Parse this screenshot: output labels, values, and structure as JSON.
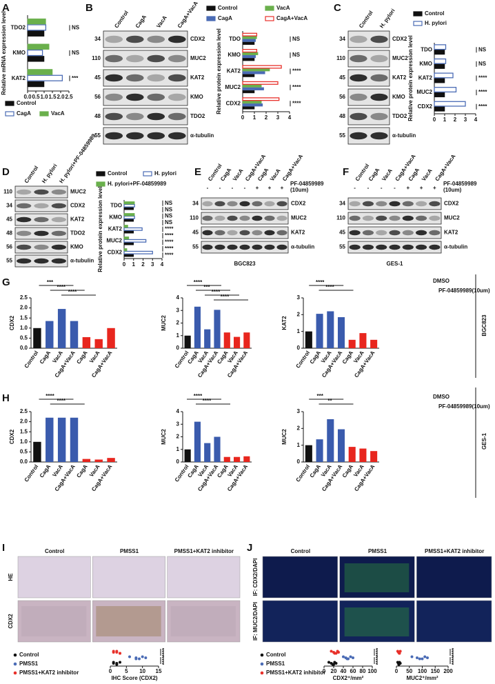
{
  "chart_data": [
    {
      "type": "hbar",
      "panel": "A",
      "ylabel": "Relative mRNA expression level",
      "categories": [
        "TDO2",
        "KMO",
        "KAT2"
      ],
      "series": [
        {
          "name": "Control",
          "color": "#111111",
          "values": [
            1,
            1,
            1
          ]
        },
        {
          "name": "CagA",
          "color": "#4a6bb5",
          "outline": true,
          "values": [
            1.1,
            0.9,
            2.1
          ]
        },
        {
          "name": "VacA",
          "color": "#6ab04c",
          "values": [
            1.1,
            1.3,
            1.5
          ]
        }
      ],
      "xlim": [
        0,
        2.5
      ],
      "xticks": [
        {
          "value": 0,
          "label": "0.0"
        },
        {
          "value": 0.5,
          "label": "0.5"
        },
        {
          "value": 1,
          "label": "1.0"
        },
        {
          "value": 1.5,
          "label": "1.5"
        },
        {
          "value": 2,
          "label": "2.0"
        },
        {
          "value": 2.5,
          "label": "2.5"
        }
      ],
      "annotations": [
        "NS",
        "NS",
        "***"
      ]
    },
    {
      "type": "hbar",
      "ylabel": "Relative protein expression level",
      "categories": [
        "TDO",
        "KMO",
        "KAT2",
        "MUC2",
        "CDX2"
      ],
      "series": [
        {
          "name": "Control",
          "color": "#111111",
          "values": [
            1,
            1,
            1,
            1,
            1
          ]
        },
        {
          "name": "CagA",
          "color": "#4a6bb5",
          "values": [
            1.1,
            1.1,
            1.9,
            1.8,
            1.7
          ]
        },
        {
          "name": "VacA",
          "color": "#6ab04c",
          "values": [
            1.2,
            1.3,
            2.3,
            1.6,
            1.6
          ]
        },
        {
          "name": "CagA+VacA",
          "color": "#e8302a",
          "outline": true,
          "values": [
            1.2,
            1.2,
            3.3,
            3.0,
            3.1
          ]
        }
      ],
      "xlim": [
        0,
        4
      ],
      "xticks": [
        0,
        1,
        2,
        3,
        4
      ],
      "annotations": [
        "NS",
        "NS",
        "****",
        "****",
        "****"
      ]
    },
    {
      "type": "hbar",
      "ylabel": "Relative protein expression level",
      "categories": [
        "TDO",
        "KMO",
        "KAT2",
        "MUC2",
        "CDX2"
      ],
      "series": [
        {
          "name": "Control",
          "color": "#111111",
          "values": [
            1,
            1,
            1,
            1,
            1
          ]
        },
        {
          "name": "H. pylori",
          "color": "#4a6bb5",
          "outline": true,
          "values": [
            1.1,
            1.1,
            1.8,
            2.1,
            3.0
          ]
        }
      ],
      "xlim": [
        0,
        4
      ],
      "xticks": [
        0,
        1,
        2,
        3,
        4
      ],
      "annotations": [
        "NS",
        "NS",
        "****",
        "****",
        "****"
      ]
    },
    {
      "type": "hbar",
      "ylabel": "Relative protein expression level",
      "categories": [
        "TDO",
        "KMO",
        "KAT2",
        "MUC2",
        "CDX2"
      ],
      "series": [
        {
          "name": "Control",
          "color": "#111111",
          "values": [
            1,
            1,
            1,
            1,
            1
          ]
        },
        {
          "name": "H. pylori",
          "color": "#4a6bb5",
          "outline": true,
          "values": [
            1.1,
            1.1,
            1.9,
            2.3,
            3.0
          ]
        },
        {
          "name": "H. pylori+PF-04859989",
          "color": "#6ab04c",
          "values": [
            1.1,
            1.1,
            0.4,
            0.5,
            0.3
          ]
        }
      ],
      "xlim": [
        0,
        4
      ],
      "xticks": [
        0,
        1,
        2,
        3,
        4
      ],
      "annotations": [
        "NS",
        "NS",
        "NS",
        "NS",
        "****",
        "****",
        "****",
        "****",
        "****"
      ]
    },
    {
      "type": "bar",
      "panel": "G",
      "ylabel": "CDX2",
      "categories": [
        "Control",
        "CagA",
        "VacA",
        "CagA+VacA",
        "CagA",
        "VacA",
        "CagA+VacA"
      ],
      "values": [
        1,
        1.35,
        1.95,
        1.35,
        0.55,
        0.45,
        1.0
      ],
      "colors": [
        "#111111",
        "#3a5bad",
        "#3a5bad",
        "#3a5bad",
        "#e8261e",
        "#e8261e",
        "#e8261e"
      ],
      "ylim": [
        0,
        2.5
      ],
      "yticks": [
        {
          "value": 0,
          "label": "0.0"
        },
        {
          "value": 0.5,
          "label": "0.5"
        },
        {
          "value": 1,
          "label": "1.0"
        },
        {
          "value": 1.5,
          "label": "1.5"
        },
        {
          "value": 2,
          "label": "2.0"
        },
        {
          "value": 2.5,
          "label": "2.5"
        }
      ],
      "annotations": [
        "***",
        "****",
        "****"
      ],
      "legend": [
        {
          "name": "DMSO",
          "color": "#2e4fa3"
        },
        {
          "name": "PF-04859989(10um)",
          "color": "#e8261e"
        }
      ],
      "side_label": "BGC823"
    },
    {
      "type": "bar",
      "ylabel": "MUC2",
      "categories": [
        "Control",
        "CagA",
        "VacA",
        "CagA+VacA",
        "CagA",
        "VacA",
        "CagA+VacA"
      ],
      "values": [
        1,
        3.3,
        1.5,
        3.05,
        1.25,
        0.9,
        1.25
      ],
      "colors": [
        "#111111",
        "#3a5bad",
        "#3a5bad",
        "#3a5bad",
        "#e8261e",
        "#e8261e",
        "#e8261e"
      ],
      "ylim": [
        0,
        4
      ],
      "yticks": [
        0,
        1,
        2,
        3,
        4
      ],
      "annotations": [
        "****",
        "***",
        "****",
        "****"
      ]
    },
    {
      "type": "bar",
      "ylabel": "KAT2",
      "categories": [
        "Control",
        "CagA",
        "VacA",
        "CagA+VacA",
        "CagA",
        "VacA",
        "CagA+VacA"
      ],
      "values": [
        1,
        2.05,
        2.2,
        1.85,
        0.5,
        0.9,
        0.5
      ],
      "colors": [
        "#111111",
        "#3a5bad",
        "#3a5bad",
        "#3a5bad",
        "#e8261e",
        "#e8261e",
        "#e8261e"
      ],
      "ylim": [
        0,
        3
      ],
      "yticks": [
        0,
        1,
        2,
        3
      ],
      "annotations": [
        "****",
        "****"
      ]
    },
    {
      "type": "bar",
      "panel": "H",
      "ylabel": "CDX2",
      "categories": [
        "Control",
        "CagA",
        "VacA",
        "CagA+VacA",
        "CagA",
        "VacA",
        "CagA+VacA"
      ],
      "values": [
        1,
        2.2,
        2.2,
        2.2,
        0.15,
        0.12,
        0.2
      ],
      "colors": [
        "#111111",
        "#3a5bad",
        "#3a5bad",
        "#3a5bad",
        "#e8261e",
        "#e8261e",
        "#e8261e"
      ],
      "ylim": [
        0,
        2.5
      ],
      "yticks": [
        {
          "value": 0,
          "label": "0.0"
        },
        {
          "value": 0.5,
          "label": "0.5"
        },
        {
          "value": 1,
          "label": "1.0"
        },
        {
          "value": 1.5,
          "label": "1.5"
        },
        {
          "value": 2,
          "label": "2.0"
        },
        {
          "value": 2.5,
          "label": "2.5"
        }
      ],
      "annotations": [
        "****",
        "****"
      ],
      "legend": [
        {
          "name": "DMSO",
          "color": "#2e4fa3"
        },
        {
          "name": "PF-04859989(10um)",
          "color": "#e8261e"
        }
      ],
      "side_label": "GES-1"
    },
    {
      "type": "bar",
      "ylabel": "MUC2",
      "categories": [
        "Control",
        "CagA",
        "VacA",
        "CagA+VacA",
        "CagA",
        "VacA",
        "CagA+VacA"
      ],
      "values": [
        1,
        3.2,
        1.5,
        2.0,
        0.4,
        0.4,
        0.45
      ],
      "colors": [
        "#111111",
        "#3a5bad",
        "#3a5bad",
        "#3a5bad",
        "#e8261e",
        "#e8261e",
        "#e8261e"
      ],
      "ylim": [
        0,
        4
      ],
      "yticks": [
        0,
        1,
        2,
        3,
        4
      ],
      "annotations": [
        "****",
        "****"
      ]
    },
    {
      "type": "bar",
      "ylabel": "MUC2",
      "categories": [
        "Control",
        "CagA",
        "VacA",
        "CagA+VacA",
        "CagA",
        "VacA",
        "CagA+VacA"
      ],
      "values": [
        1,
        1.35,
        2.55,
        1.95,
        0.9,
        0.8,
        0.65
      ],
      "colors": [
        "#111111",
        "#3a5bad",
        "#3a5bad",
        "#3a5bad",
        "#e8261e",
        "#e8261e",
        "#e8261e"
      ],
      "ylim": [
        0,
        3
      ],
      "yticks": [
        0,
        1,
        2,
        3
      ],
      "annotations": [
        "***",
        "**"
      ]
    },
    {
      "type": "strip",
      "xlabel": "IHC Score (CDX2)",
      "series": [
        {
          "name": "Control",
          "color": "#111111",
          "values": [
            1,
            2,
            2,
            3,
            1,
            2
          ]
        },
        {
          "name": "PMSS1",
          "color": "#4a6bb5",
          "values": [
            6,
            8,
            9,
            10,
            11,
            8
          ]
        },
        {
          "name": "PMSS1+KAT2 inhibitor",
          "color": "#e8302a",
          "values": [
            1,
            2,
            3,
            2,
            1,
            3
          ]
        }
      ],
      "xlim": [
        0,
        15
      ],
      "xticks": [
        0,
        5,
        10,
        15
      ],
      "annotations": [
        "****",
        "****"
      ]
    },
    {
      "type": "strip",
      "xlabel": "CDX2⁺/mm²",
      "series": [
        {
          "name": "Control",
          "color": "#111111",
          "values": [
            10,
            15,
            20,
            22,
            25,
            18
          ]
        },
        {
          "name": "PMSS1",
          "color": "#4a6bb5",
          "values": [
            40,
            45,
            50,
            55,
            60,
            48
          ]
        },
        {
          "name": "PMSS1+KAT2 inhibitor",
          "color": "#e8302a",
          "values": [
            15,
            20,
            25,
            28,
            30,
            22
          ]
        }
      ],
      "xlim": [
        0,
        100
      ],
      "xticks": [
        0,
        20,
        40,
        60,
        80,
        100
      ],
      "annotations": [
        "****",
        "****"
      ]
    },
    {
      "type": "strip",
      "xlabel": "MUC2⁺/mm²",
      "series": [
        {
          "color": "#111111",
          "values": [
            5,
            8,
            10,
            12,
            15,
            9
          ]
        },
        {
          "color": "#4a6bb5",
          "values": [
            60,
            80,
            100,
            110,
            120,
            90
          ]
        },
        {
          "color": "#e8302a",
          "values": [
            5,
            10,
            12,
            15,
            8,
            11
          ]
        }
      ],
      "xlim": [
        0,
        200
      ],
      "xticks": [
        0,
        50,
        100,
        150,
        200
      ],
      "annotations": [
        "****",
        "****"
      ]
    }
  ],
  "blots": [
    {
      "panel": "B",
      "lanes": [
        "Control",
        "CagA",
        "VacA",
        "CagA+VacA"
      ],
      "markers": [
        "34",
        "110",
        "45",
        "56",
        "48",
        "55"
      ],
      "proteins": [
        "CDX2",
        "MUC2",
        "KAT2",
        "KMO",
        "TDO2",
        "α-tubulin"
      ]
    },
    {
      "panel": "C",
      "lanes": [
        "Control",
        "H. pylori"
      ],
      "markers": [
        "34",
        "110",
        "45",
        "56",
        "48",
        "55"
      ],
      "proteins": [
        "CDX2",
        "MUC2",
        "KAT2",
        "KMO",
        "TDO2",
        "α-tubulin"
      ]
    },
    {
      "panel": "D",
      "lanes": [
        "Control",
        "H. pylori",
        "H. pylori+PF-04859989"
      ],
      "markers": [
        "110",
        "34",
        "45",
        "48",
        "56",
        "55"
      ],
      "proteins": [
        "MUC2",
        "CDX2",
        "KAT2",
        "TDO2",
        "KMO",
        "α-tubulin"
      ]
    },
    {
      "panel": "E",
      "lanes": [
        "Control",
        "CagA",
        "VacA",
        "CagA+VacA",
        "CagA",
        "VacA",
        "CagA+VacA"
      ],
      "signs": [
        "-",
        "-",
        "-",
        "-",
        "+",
        "+",
        "+"
      ],
      "treatment": [
        "PF-04859989",
        "(10um)"
      ],
      "markers": [
        "34",
        "110",
        "45",
        "55"
      ],
      "proteins": [
        "CDX2",
        "MUC2",
        "KAT2",
        "α-tubulin"
      ],
      "caption": "BGC823"
    },
    {
      "panel": "F",
      "lanes": [
        "Control",
        "CagA",
        "VacA",
        "CagA+VacA",
        "CagA",
        "VacA",
        "CagA+VacA"
      ],
      "signs": [
        "-",
        "-",
        "-",
        "-",
        "+",
        "+",
        "+"
      ],
      "treatment": [
        "PF-04859989",
        "(10um)"
      ],
      "markers": [
        "34",
        "110",
        "45",
        "55"
      ],
      "proteins": [
        "CDX2",
        "MUC2",
        "KAT2",
        "α-tubulin"
      ],
      "caption": "GES-1"
    }
  ],
  "images": [
    {
      "panel": "I",
      "columns": [
        "Control",
        "PMSS1",
        "PMSS1+KAT2 inhibitor"
      ],
      "column_colors": [
        "#111111",
        "#2e4fa3",
        "#e8261e"
      ],
      "rows": [
        "HE",
        "CDX2"
      ],
      "tones": [
        "#ddd2e2",
        "#c9b4c2"
      ]
    },
    {
      "panel": "J",
      "columns": [
        "Control",
        "PMSS1",
        "PMSS1+KAT2 inhibitor"
      ],
      "column_colors": [
        "#111111",
        "#2e4fa3",
        "#e8261e"
      ],
      "rows": [
        "IF: CDX2/DAPI",
        "IF: MUC2/DAPI"
      ],
      "tones": [
        "#0e1b4d",
        "#12235a"
      ]
    }
  ]
}
